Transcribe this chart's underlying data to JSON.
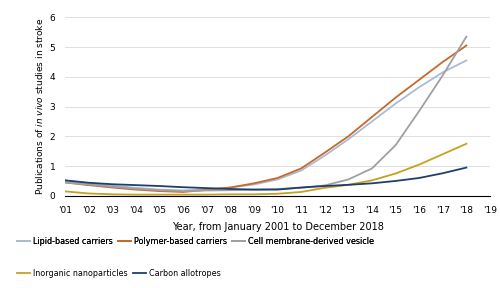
{
  "years": [
    2001,
    2002,
    2003,
    2004,
    2005,
    2006,
    2007,
    2008,
    2009,
    2010,
    2011,
    2012,
    2013,
    2014,
    2015,
    2016,
    2017,
    2018
  ],
  "lipid_based": [
    0.52,
    0.42,
    0.34,
    0.27,
    0.21,
    0.18,
    0.22,
    0.28,
    0.38,
    0.55,
    0.85,
    1.35,
    1.9,
    2.5,
    3.1,
    3.65,
    4.15,
    4.55
  ],
  "polymer_based": [
    0.45,
    0.36,
    0.28,
    0.21,
    0.16,
    0.13,
    0.2,
    0.28,
    0.42,
    0.6,
    0.92,
    1.45,
    2.0,
    2.65,
    3.3,
    3.9,
    4.5,
    5.05
  ],
  "cell_membrane": [
    0.45,
    0.38,
    0.31,
    0.24,
    0.19,
    0.16,
    0.18,
    0.19,
    0.21,
    0.23,
    0.27,
    0.35,
    0.55,
    0.92,
    1.7,
    2.85,
    4.05,
    5.35
  ],
  "inorganic": [
    0.15,
    0.08,
    0.05,
    0.04,
    0.04,
    0.04,
    0.04,
    0.05,
    0.05,
    0.07,
    0.13,
    0.27,
    0.37,
    0.52,
    0.75,
    1.05,
    1.4,
    1.75
  ],
  "carbon": [
    0.52,
    0.44,
    0.39,
    0.36,
    0.33,
    0.29,
    0.26,
    0.23,
    0.21,
    0.21,
    0.28,
    0.33,
    0.37,
    0.42,
    0.5,
    0.6,
    0.76,
    0.95
  ],
  "colors": {
    "lipid_based": "#a8bcd4",
    "polymer_based": "#c8682a",
    "cell_membrane": "#a0a0a0",
    "inorganic": "#c8a020",
    "carbon": "#1e3f6e"
  },
  "ylabel_plain": "Publications of ",
  "ylabel_italic": "in vivo",
  "ylabel_end": " studies in stroke",
  "xlabel": "Year, from January 2001 to December 2018",
  "ylim": [
    0,
    6
  ],
  "yticks": [
    0,
    1,
    2,
    3,
    4,
    5,
    6
  ],
  "xtick_labels": [
    "'01",
    "'02",
    "'03",
    "'04",
    "'05",
    "'06",
    "'07",
    "'08",
    "'09",
    "'10",
    "'11",
    "'12",
    "'13",
    "'14",
    "'15",
    "'16",
    "'17",
    "'18",
    "'19"
  ],
  "legend": [
    {
      "label": "Lipid-based carriers",
      "color": "#a8bcd4"
    },
    {
      "label": "Polymer-based carriers",
      "color": "#c8682a"
    },
    {
      "label": "Cell membrane-derived vesicle",
      "color": "#a0a0a0"
    },
    {
      "label": "Inorganic nanoparticles",
      "color": "#c8a020"
    },
    {
      "label": "Carbon allotropes",
      "color": "#1e3f6e"
    }
  ]
}
